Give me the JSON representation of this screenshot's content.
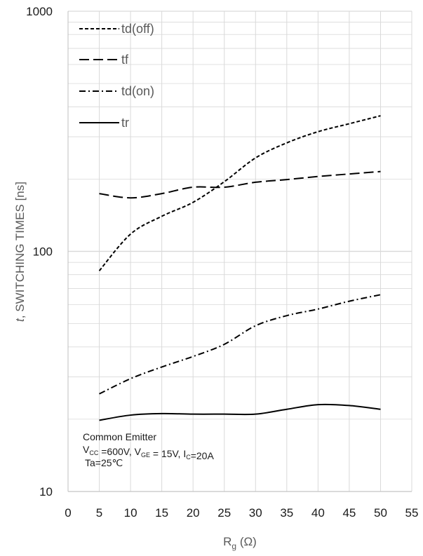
{
  "chart_data": {
    "type": "line",
    "title": "",
    "xlabel": {
      "main": "R",
      "sub": "g",
      "rest": " (Ω)"
    },
    "ylabel": {
      "italic": "t",
      "rest": ", SWITCHING TIMES [ns]"
    },
    "x_ticks": [
      "0",
      "5",
      "10",
      "15",
      "20",
      "25",
      "30",
      "35",
      "40",
      "45",
      "50",
      "55"
    ],
    "y_ticks": [
      "10",
      "100",
      "1000"
    ],
    "xlim": [
      0,
      55
    ],
    "ylim": [
      10,
      1000
    ],
    "y_scale": "log",
    "grid": true,
    "legend_position": "top-left",
    "series": [
      {
        "name": "td(off)",
        "dash": "short-dash",
        "x": [
          5,
          10,
          15,
          20,
          25,
          30,
          35,
          40,
          45,
          50
        ],
        "y": [
          83,
          118,
          140,
          160,
          195,
          245,
          283,
          315,
          340,
          367
        ]
      },
      {
        "name": "tf",
        "dash": "long-dash",
        "x": [
          5,
          10,
          15,
          20,
          25,
          30,
          35,
          40,
          45,
          50
        ],
        "y": [
          174,
          167,
          174,
          185,
          185,
          194,
          199,
          205,
          210,
          215
        ]
      },
      {
        "name": "td(on)",
        "dash": "dash-dot",
        "x": [
          5,
          10,
          15,
          20,
          25,
          30,
          35,
          40,
          45,
          50
        ],
        "y": [
          25.5,
          29.5,
          33,
          36.5,
          41,
          49,
          54,
          57.5,
          62,
          66
        ]
      },
      {
        "name": "tr",
        "dash": "solid",
        "x": [
          5,
          10,
          15,
          20,
          25,
          30,
          35,
          40,
          45,
          50
        ],
        "y": [
          19.8,
          20.8,
          21.1,
          21.0,
          21.0,
          21.0,
          22.0,
          23.0,
          22.8,
          22.0
        ]
      }
    ],
    "annotation": {
      "line1": "Common Emitter",
      "line2": [
        {
          "t": "V"
        },
        {
          "t": "CC",
          "sub": true
        },
        {
          "t": " =600V, V"
        },
        {
          "t": "GE",
          "sub": true
        },
        {
          "t": " = 15V, I"
        },
        {
          "t": "C",
          "sub": true
        },
        {
          "t": "=20A"
        }
      ],
      "line3": "Ta=25℃"
    }
  },
  "colors": {
    "line": "#000000",
    "grid": "#d9d9d9",
    "axis": "#bfbfbf",
    "background": "#ffffff"
  }
}
